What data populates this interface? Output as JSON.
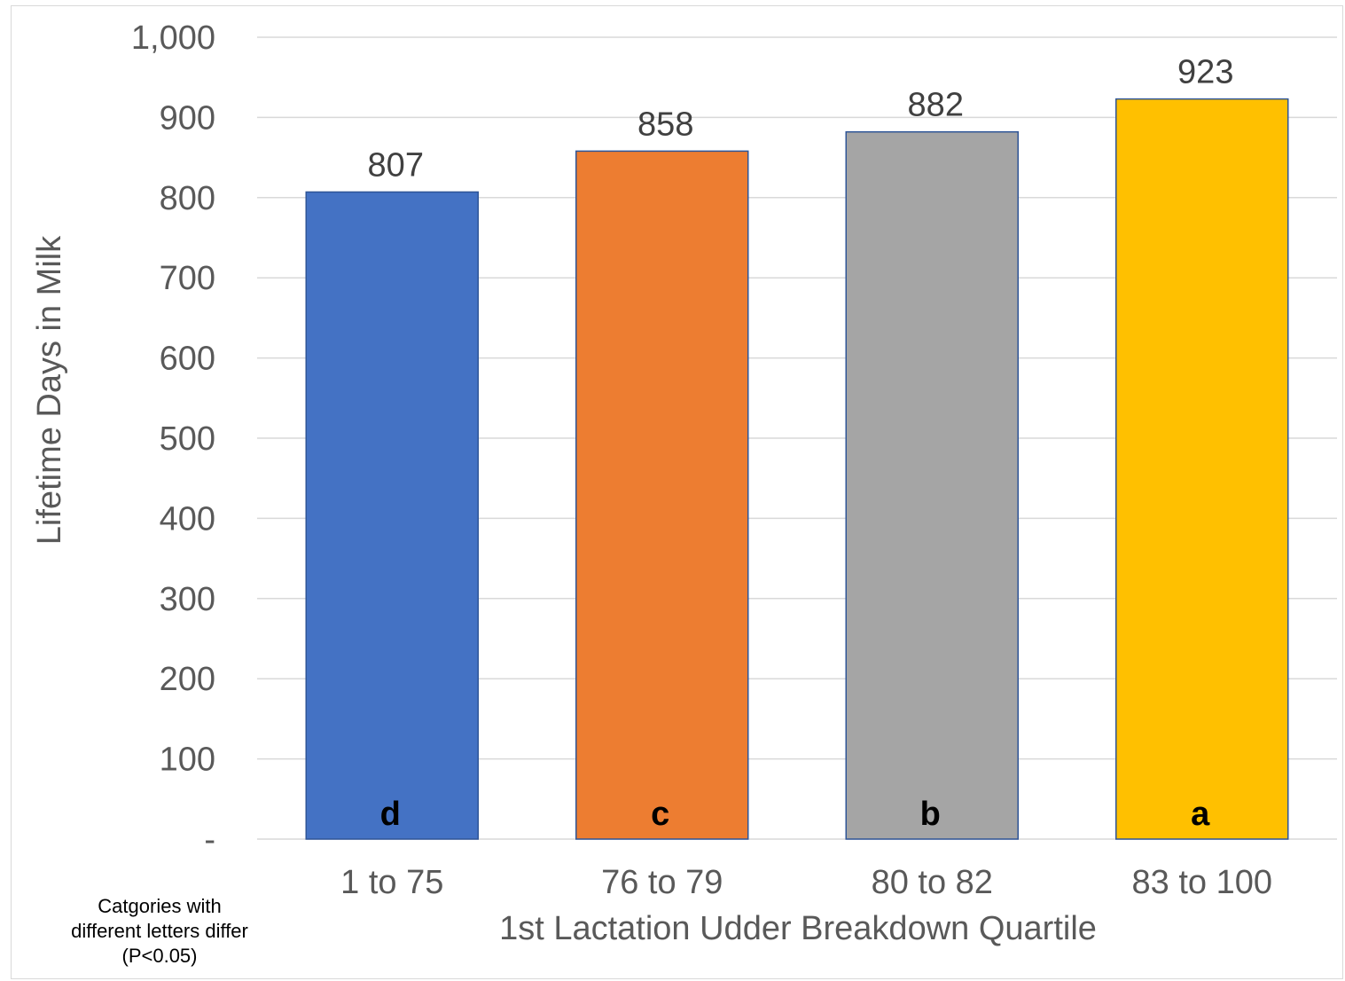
{
  "chart_data": {
    "type": "bar",
    "categories": [
      "1 to 75",
      "76 to 79",
      "80 to 82",
      "83 to 100"
    ],
    "values": [
      807,
      858,
      882,
      923
    ],
    "data_labels": [
      "807",
      "858",
      "882",
      "923"
    ],
    "significance_letters": [
      "d",
      "c",
      "b",
      "a"
    ],
    "colors": [
      "#4472C4",
      "#ED7D31",
      "#A5A5A5",
      "#FFC000"
    ],
    "xlabel": "1st Lactation Udder Breakdown Quartile",
    "ylabel": "Lifetime Days in Milk",
    "ylim": [
      0,
      1000
    ],
    "y_ticks": [
      0,
      100,
      200,
      300,
      400,
      500,
      600,
      700,
      800,
      900,
      1000
    ],
    "y_tick_labels": [
      "-",
      "100",
      "200",
      "300",
      "400",
      "500",
      "600",
      "700",
      "800",
      "900",
      "1,000"
    ],
    "grid": true,
    "legend": "none",
    "footnote": [
      "Catgories with",
      "different letters differ",
      "(P<0.05)"
    ]
  }
}
